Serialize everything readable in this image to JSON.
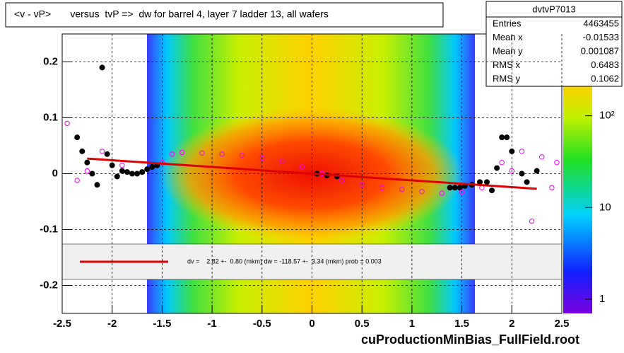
{
  "chart_data": {
    "type": "scatter",
    "title": "<v - vP>       versus  tvP =>  dw for barrel 4, layer 7 ladder 13, all wafers",
    "footer": "cuProductionMinBias_FullField.root",
    "legend_text": "dv =    2.82 +-  0.80 (mkm) dw = -118.57 +-  3.34 (mkm) prob = 0.003",
    "stats": {
      "title": "dvtvP7013",
      "rows": [
        [
          "Entries",
          "4463455"
        ],
        [
          "Mean x",
          "-0.01533"
        ],
        [
          "Mean y",
          "0.001087"
        ],
        [
          "RMS x",
          "0.6483"
        ],
        [
          "RMS y",
          "0.1062"
        ]
      ]
    },
    "xlim": [
      -2.5,
      2.5
    ],
    "xticks": [
      -2.5,
      -2,
      -1.5,
      -1,
      -0.5,
      0,
      0.5,
      1,
      1.5,
      2,
      2.5
    ],
    "ylim": [
      -0.25,
      0.25
    ],
    "yticks": [
      -0.2,
      -0.1,
      0,
      0.1,
      0.2
    ],
    "zlim": [
      0.7,
      780
    ],
    "zticks": [
      1,
      10,
      {
        "value": 100,
        "label": "10²"
      }
    ],
    "zlog": true,
    "grid": true,
    "series": [
      {
        "color": "#000000",
        "marker": "filled",
        "x": [
          -2.35,
          -2.3,
          -2.25,
          -2.2,
          -2.15,
          -2.1,
          -2.05,
          -2.0,
          -1.95,
          -1.9,
          -1.85,
          -1.8,
          -1.75,
          -1.7,
          -1.65,
          -1.6,
          -1.55,
          0.05,
          0.15,
          0.25,
          1.38,
          1.43,
          1.48,
          1.53,
          1.6,
          1.68,
          1.75,
          1.8,
          1.85,
          1.9,
          1.95,
          2.0,
          2.1,
          2.15,
          2.25
        ],
        "y": [
          0.065,
          0.04,
          0.02,
          0.0,
          -0.02,
          0.19,
          0.035,
          0.015,
          -0.005,
          0.005,
          0.003,
          0.0,
          0.0,
          0.003,
          0.008,
          0.012,
          0.015,
          0.0,
          -0.003,
          -0.005,
          -0.025,
          -0.025,
          -0.025,
          -0.022,
          -0.02,
          -0.015,
          -0.015,
          -0.03,
          0.01,
          0.065,
          0.065,
          0.04,
          0.0,
          -0.015,
          0.005
        ]
      },
      {
        "color": "#ee00ee",
        "marker": "open",
        "x": [
          -2.45,
          -2.35,
          -2.25,
          -2.1,
          -1.9,
          -1.5,
          -1.4,
          -1.3,
          -1.1,
          -0.9,
          -0.7,
          -0.5,
          -0.3,
          -0.1,
          0.1,
          0.3,
          0.5,
          0.7,
          0.9,
          1.1,
          1.3,
          1.5,
          1.7,
          1.9,
          2.0,
          2.1,
          2.2,
          2.3,
          2.4,
          2.45
        ],
        "y": [
          0.09,
          -0.012,
          0.005,
          0.04,
          0.015,
          0.02,
          0.035,
          0.038,
          0.037,
          0.035,
          0.033,
          0.028,
          0.022,
          0.012,
          0.0,
          -0.012,
          -0.02,
          -0.025,
          -0.028,
          -0.032,
          -0.035,
          -0.033,
          -0.025,
          0.02,
          0.005,
          0.04,
          -0.085,
          0.03,
          -0.025,
          0.02
        ]
      },
      {
        "color": "#dd0000",
        "marker": "line",
        "x": [
          -2.25,
          2.25
        ],
        "y": [
          0.027,
          -0.027
        ]
      }
    ]
  }
}
